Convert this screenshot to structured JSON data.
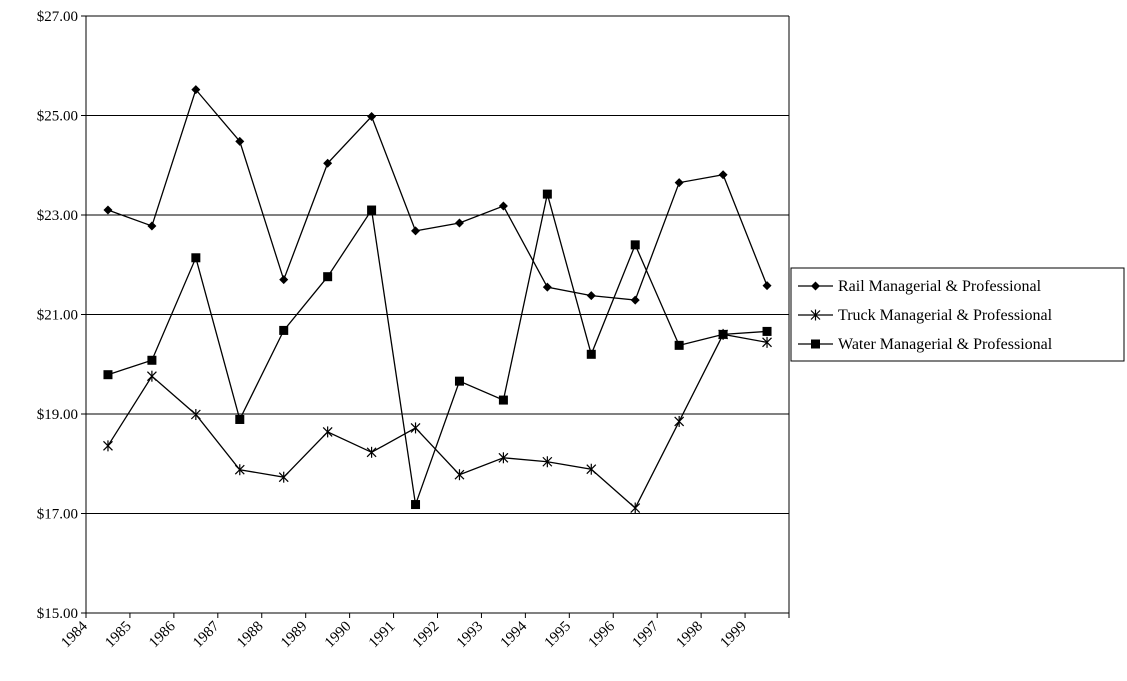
{
  "chart_data": {
    "type": "line",
    "title": "",
    "xlabel": "",
    "ylabel": "",
    "ylim": [
      15,
      27
    ],
    "y_tick_step": 2,
    "y_format": "currency-usd-2dp",
    "grid": "horizontal",
    "legend_position": "right",
    "categories": [
      "1984",
      "1985",
      "1986",
      "1987",
      "1988",
      "1989",
      "1990",
      "1991",
      "1992",
      "1993",
      "1994",
      "1995",
      "1996",
      "1997",
      "1998",
      "1999"
    ],
    "y_ticks": [
      "$15.00",
      "$17.00",
      "$19.00",
      "$21.00",
      "$23.00",
      "$25.00",
      "$27.00"
    ],
    "series": [
      {
        "name": "Rail Managerial & Professional",
        "marker": "diamond",
        "color": "#000000",
        "values": [
          23.1,
          22.78,
          25.52,
          24.48,
          21.7,
          24.04,
          24.98,
          22.68,
          22.84,
          23.18,
          21.55,
          21.38,
          21.29,
          23.65,
          23.81,
          21.58
        ]
      },
      {
        "name": "Truck Managerial & Professional",
        "marker": "asterisk",
        "color": "#000000",
        "values": [
          18.36,
          19.76,
          18.99,
          17.88,
          17.73,
          18.64,
          18.23,
          18.72,
          17.78,
          18.12,
          18.04,
          17.89,
          17.11,
          18.85,
          20.6,
          20.44
        ]
      },
      {
        "name": "Water Managerial & Professional",
        "marker": "square",
        "color": "#000000",
        "values": [
          19.79,
          20.08,
          22.14,
          18.89,
          20.68,
          21.76,
          23.1,
          17.18,
          19.66,
          19.28,
          23.42,
          20.2,
          22.4,
          20.38,
          20.6,
          20.66
        ]
      }
    ]
  }
}
